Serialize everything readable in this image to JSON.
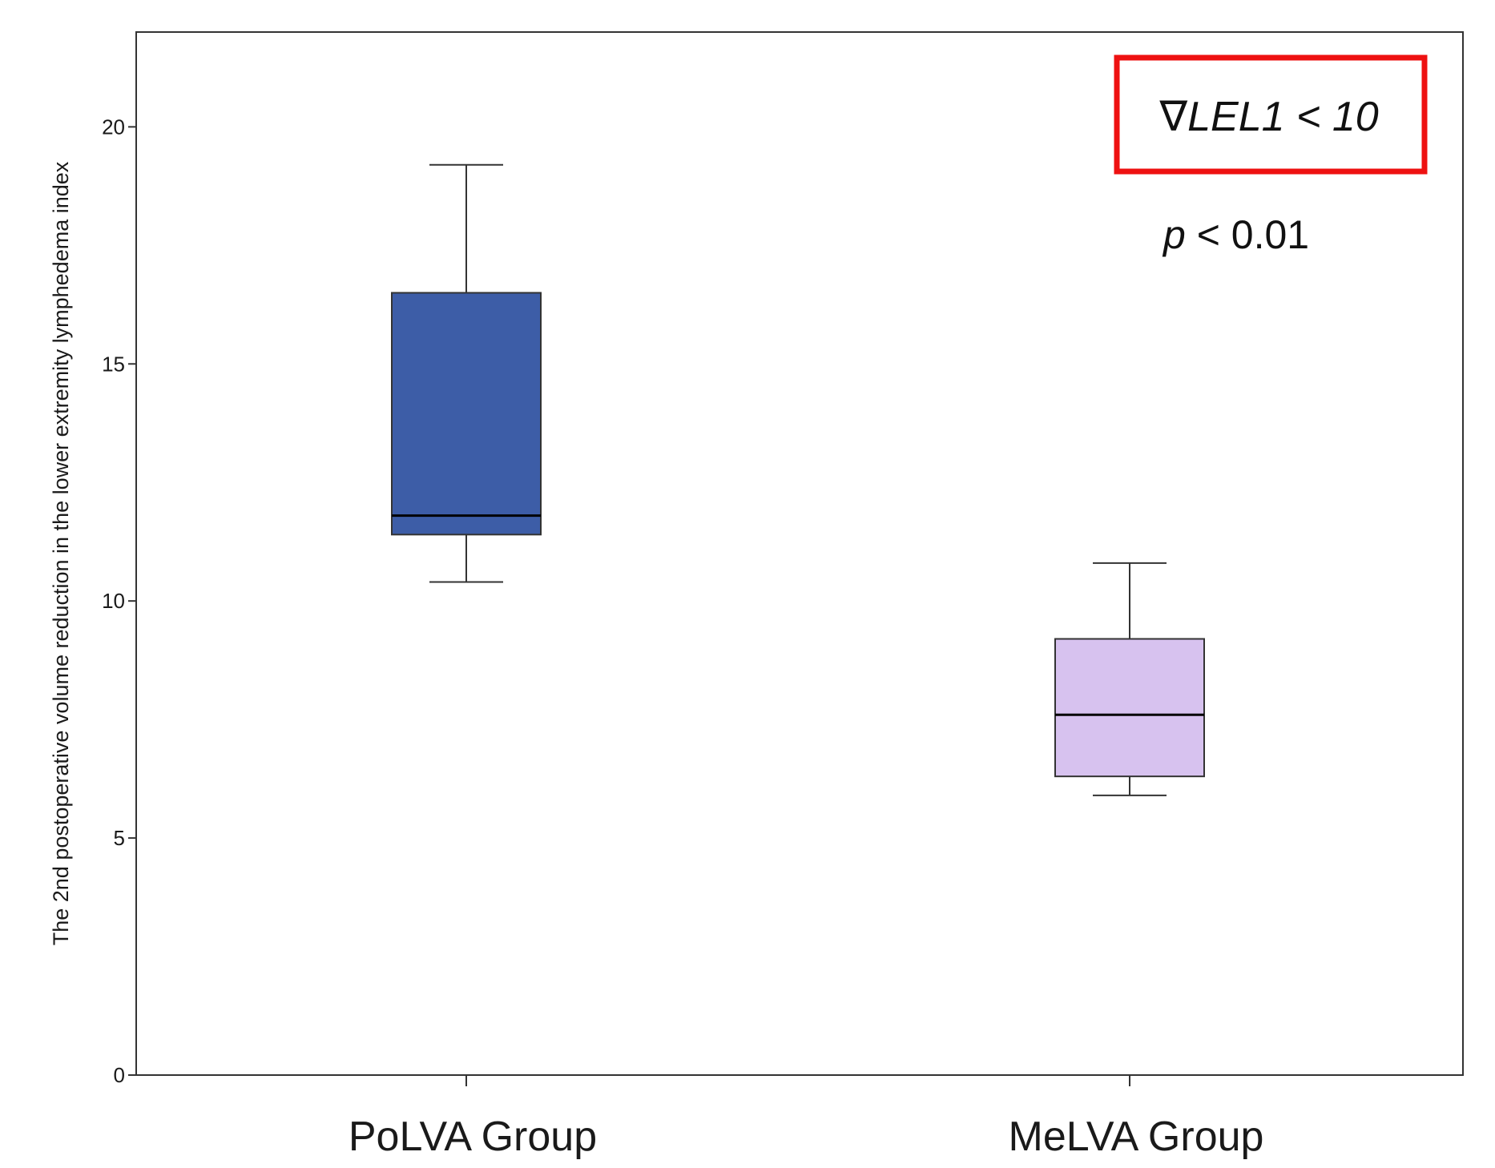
{
  "chart_data": {
    "type": "box",
    "title": "",
    "xlabel": "",
    "ylabel": "The 2nd postoperative volume reduction in the lower extremity lymphedema index",
    "ylim": [
      0,
      22
    ],
    "yticks": [
      0,
      5,
      10,
      15,
      20
    ],
    "categories": [
      "PoLVA Group",
      "MeLVA Group"
    ],
    "series": [
      {
        "name": "PoLVA Group",
        "color": "#3d5da7",
        "min": 10.4,
        "q1": 11.4,
        "median": 11.8,
        "q3": 16.5,
        "max": 19.2
      },
      {
        "name": "MeLVA Group",
        "color": "#d7c2ef",
        "min": 5.9,
        "q1": 6.3,
        "median": 7.6,
        "q3": 9.2,
        "max": 10.8
      }
    ],
    "annotations": {
      "boxed_label": "∇LEL1 < 10",
      "boxed_label_color": "#ee1111",
      "p_prefix": "p",
      "p_rest": " < 0.01"
    }
  }
}
